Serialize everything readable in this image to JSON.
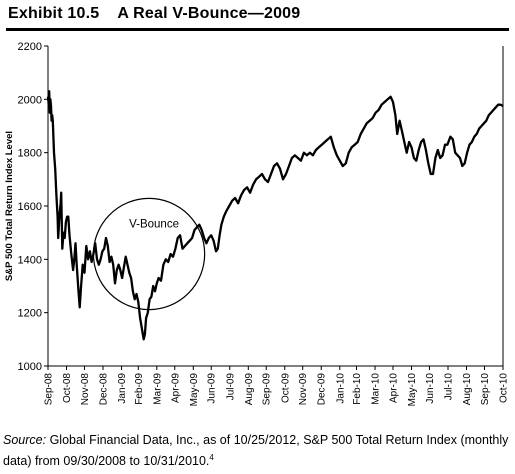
{
  "exhibit": {
    "number": "Exhibit 10.5",
    "title": "A Real V-Bounce—2009"
  },
  "chart_data": {
    "type": "line",
    "title": "",
    "xlabel": "",
    "ylabel": "S&P 500 Total Return Index Level",
    "ylim": [
      1000,
      2200
    ],
    "yticks": [
      1000,
      1200,
      1400,
      1600,
      1800,
      2000,
      2200
    ],
    "yticklabels": [
      "1000",
      "1200",
      "1400",
      "1600",
      "1800",
      "2000",
      "2200"
    ],
    "xlim": [
      "2008-09-30",
      "2010-10-31"
    ],
    "xticklabels": [
      "Sep-08",
      "Oct-08",
      "Nov-08",
      "Dec-08",
      "Jan-09",
      "Feb-09",
      "Mar-09",
      "Apr-09",
      "May-09",
      "Jun-09",
      "Jul-09",
      "Aug-09",
      "Sep-09",
      "Oct-09",
      "Nov-09",
      "Dec-09",
      "Jan-10",
      "Feb-10",
      "Mar-10",
      "Apr-10",
      "May-10",
      "Jun-10",
      "Jul-10",
      "Aug-10",
      "Sep-10",
      "Oct-10"
    ],
    "grid": false,
    "legend": "none",
    "annotation": {
      "text": "V-Bounce",
      "shape": "circle",
      "center": [
        "2009-03-18",
        1420
      ],
      "radius_days": 93
    },
    "series": [
      {
        "color": "#000000",
        "points": [
          [
            "2008-09-30",
            2010
          ],
          [
            "2008-10-01",
            1985
          ],
          [
            "2008-10-02",
            2030
          ],
          [
            "2008-10-03",
            1950
          ],
          [
            "2008-10-04",
            2000
          ],
          [
            "2008-10-05",
            1975
          ],
          [
            "2008-10-06",
            1920
          ],
          [
            "2008-10-07",
            1940
          ],
          [
            "2008-10-08",
            1920
          ],
          [
            "2008-10-10",
            1800
          ],
          [
            "2008-10-12",
            1740
          ],
          [
            "2008-10-14",
            1640
          ],
          [
            "2008-10-16",
            1560
          ],
          [
            "2008-10-17",
            1480
          ],
          [
            "2008-10-19",
            1560
          ],
          [
            "2008-10-21",
            1610
          ],
          [
            "2008-10-22",
            1650
          ],
          [
            "2008-10-24",
            1440
          ],
          [
            "2008-10-26",
            1500
          ],
          [
            "2008-10-28",
            1480
          ],
          [
            "2008-10-30",
            1540
          ],
          [
            "2008-11-01",
            1560
          ],
          [
            "2008-11-03",
            1560
          ],
          [
            "2008-11-05",
            1490
          ],
          [
            "2008-11-08",
            1420
          ],
          [
            "2008-11-11",
            1360
          ],
          [
            "2008-11-13",
            1400
          ],
          [
            "2008-11-15",
            1460
          ],
          [
            "2008-11-17",
            1380
          ],
          [
            "2008-11-20",
            1280
          ],
          [
            "2008-11-22",
            1220
          ],
          [
            "2008-11-24",
            1290
          ],
          [
            "2008-11-27",
            1380
          ],
          [
            "2008-11-30",
            1350
          ],
          [
            "2008-12-03",
            1450
          ],
          [
            "2008-12-06",
            1400
          ],
          [
            "2008-12-09",
            1430
          ],
          [
            "2008-12-12",
            1390
          ],
          [
            "2008-12-15",
            1420
          ],
          [
            "2008-12-18",
            1460
          ],
          [
            "2008-12-21",
            1400
          ],
          [
            "2008-12-24",
            1380
          ],
          [
            "2008-12-27",
            1400
          ],
          [
            "2008-12-30",
            1430
          ],
          [
            "2009-01-02",
            1440
          ],
          [
            "2009-01-05",
            1480
          ],
          [
            "2009-01-08",
            1450
          ],
          [
            "2009-01-11",
            1390
          ],
          [
            "2009-01-14",
            1410
          ],
          [
            "2009-01-17",
            1380
          ],
          [
            "2009-01-20",
            1310
          ],
          [
            "2009-01-23",
            1360
          ],
          [
            "2009-01-26",
            1380
          ],
          [
            "2009-01-29",
            1360
          ],
          [
            "2009-02-01",
            1330
          ],
          [
            "2009-02-04",
            1370
          ],
          [
            "2009-02-07",
            1410
          ],
          [
            "2009-02-10",
            1380
          ],
          [
            "2009-02-13",
            1350
          ],
          [
            "2009-02-16",
            1330
          ],
          [
            "2009-02-19",
            1280
          ],
          [
            "2009-02-22",
            1250
          ],
          [
            "2009-02-25",
            1270
          ],
          [
            "2009-02-28",
            1240
          ],
          [
            "2009-03-03",
            1180
          ],
          [
            "2009-03-06",
            1140
          ],
          [
            "2009-03-09",
            1100
          ],
          [
            "2009-03-11",
            1120
          ],
          [
            "2009-03-13",
            1180
          ],
          [
            "2009-03-16",
            1200
          ],
          [
            "2009-03-19",
            1250
          ],
          [
            "2009-03-22",
            1260
          ],
          [
            "2009-03-25",
            1300
          ],
          [
            "2009-03-28",
            1280
          ],
          [
            "2009-03-31",
            1310
          ],
          [
            "2009-04-03",
            1330
          ],
          [
            "2009-04-07",
            1320
          ],
          [
            "2009-04-11",
            1380
          ],
          [
            "2009-04-15",
            1400
          ],
          [
            "2009-04-19",
            1390
          ],
          [
            "2009-04-23",
            1420
          ],
          [
            "2009-04-27",
            1410
          ],
          [
            "2009-05-01",
            1440
          ],
          [
            "2009-05-05",
            1480
          ],
          [
            "2009-05-09",
            1490
          ],
          [
            "2009-05-13",
            1440
          ],
          [
            "2009-05-17",
            1450
          ],
          [
            "2009-05-21",
            1460
          ],
          [
            "2009-05-25",
            1470
          ],
          [
            "2009-05-29",
            1480
          ],
          [
            "2009-06-02",
            1510
          ],
          [
            "2009-06-06",
            1520
          ],
          [
            "2009-06-10",
            1530
          ],
          [
            "2009-06-14",
            1510
          ],
          [
            "2009-06-18",
            1480
          ],
          [
            "2009-06-22",
            1460
          ],
          [
            "2009-06-26",
            1480
          ],
          [
            "2009-06-30",
            1490
          ],
          [
            "2009-07-04",
            1470
          ],
          [
            "2009-07-08",
            1430
          ],
          [
            "2009-07-11",
            1440
          ],
          [
            "2009-07-14",
            1490
          ],
          [
            "2009-07-17",
            1530
          ],
          [
            "2009-07-21",
            1560
          ],
          [
            "2009-07-25",
            1580
          ],
          [
            "2009-07-30",
            1600
          ],
          [
            "2009-08-04",
            1620
          ],
          [
            "2009-08-09",
            1630
          ],
          [
            "2009-08-14",
            1610
          ],
          [
            "2009-08-19",
            1640
          ],
          [
            "2009-08-24",
            1660
          ],
          [
            "2009-08-29",
            1670
          ],
          [
            "2009-09-03",
            1650
          ],
          [
            "2009-09-08",
            1680
          ],
          [
            "2009-09-13",
            1700
          ],
          [
            "2009-09-18",
            1710
          ],
          [
            "2009-09-23",
            1720
          ],
          [
            "2009-09-28",
            1700
          ],
          [
            "2009-10-03",
            1690
          ],
          [
            "2009-10-08",
            1720
          ],
          [
            "2009-10-13",
            1750
          ],
          [
            "2009-10-18",
            1760
          ],
          [
            "2009-10-23",
            1740
          ],
          [
            "2009-10-28",
            1700
          ],
          [
            "2009-11-02",
            1720
          ],
          [
            "2009-11-07",
            1750
          ],
          [
            "2009-11-12",
            1780
          ],
          [
            "2009-11-17",
            1790
          ],
          [
            "2009-11-22",
            1780
          ],
          [
            "2009-11-27",
            1770
          ],
          [
            "2009-12-02",
            1800
          ],
          [
            "2009-12-07",
            1790
          ],
          [
            "2009-12-12",
            1800
          ],
          [
            "2009-12-17",
            1790
          ],
          [
            "2009-12-22",
            1810
          ],
          [
            "2009-12-27",
            1820
          ],
          [
            "2010-01-01",
            1830
          ],
          [
            "2010-01-06",
            1840
          ],
          [
            "2010-01-11",
            1850
          ],
          [
            "2010-01-16",
            1860
          ],
          [
            "2010-01-21",
            1820
          ],
          [
            "2010-01-26",
            1790
          ],
          [
            "2010-01-31",
            1770
          ],
          [
            "2010-02-05",
            1750
          ],
          [
            "2010-02-10",
            1760
          ],
          [
            "2010-02-15",
            1800
          ],
          [
            "2010-02-20",
            1820
          ],
          [
            "2010-02-25",
            1830
          ],
          [
            "2010-03-02",
            1840
          ],
          [
            "2010-03-07",
            1870
          ],
          [
            "2010-03-12",
            1890
          ],
          [
            "2010-03-17",
            1910
          ],
          [
            "2010-03-22",
            1920
          ],
          [
            "2010-03-27",
            1930
          ],
          [
            "2010-04-01",
            1950
          ],
          [
            "2010-04-06",
            1960
          ],
          [
            "2010-04-11",
            1980
          ],
          [
            "2010-04-16",
            1990
          ],
          [
            "2010-04-21",
            2000
          ],
          [
            "2010-04-26",
            2010
          ],
          [
            "2010-04-30",
            1990
          ],
          [
            "2010-05-04",
            1940
          ],
          [
            "2010-05-07",
            1870
          ],
          [
            "2010-05-11",
            1920
          ],
          [
            "2010-05-15",
            1880
          ],
          [
            "2010-05-19",
            1840
          ],
          [
            "2010-05-23",
            1800
          ],
          [
            "2010-05-27",
            1840
          ],
          [
            "2010-05-31",
            1820
          ],
          [
            "2010-06-04",
            1780
          ],
          [
            "2010-06-08",
            1770
          ],
          [
            "2010-06-12",
            1810
          ],
          [
            "2010-06-16",
            1840
          ],
          [
            "2010-06-20",
            1850
          ],
          [
            "2010-06-24",
            1810
          ],
          [
            "2010-06-28",
            1760
          ],
          [
            "2010-07-02",
            1720
          ],
          [
            "2010-07-06",
            1720
          ],
          [
            "2010-07-10",
            1780
          ],
          [
            "2010-07-14",
            1810
          ],
          [
            "2010-07-18",
            1780
          ],
          [
            "2010-07-22",
            1790
          ],
          [
            "2010-07-26",
            1830
          ],
          [
            "2010-07-30",
            1830
          ],
          [
            "2010-08-04",
            1860
          ],
          [
            "2010-08-08",
            1850
          ],
          [
            "2010-08-12",
            1800
          ],
          [
            "2010-08-16",
            1790
          ],
          [
            "2010-08-20",
            1780
          ],
          [
            "2010-08-24",
            1750
          ],
          [
            "2010-08-28",
            1760
          ],
          [
            "2010-09-01",
            1800
          ],
          [
            "2010-09-05",
            1830
          ],
          [
            "2010-09-09",
            1840
          ],
          [
            "2010-09-13",
            1860
          ],
          [
            "2010-09-17",
            1870
          ],
          [
            "2010-09-21",
            1890
          ],
          [
            "2010-09-25",
            1900
          ],
          [
            "2010-09-29",
            1910
          ],
          [
            "2010-10-03",
            1920
          ],
          [
            "2010-10-07",
            1940
          ],
          [
            "2010-10-11",
            1950
          ],
          [
            "2010-10-15",
            1960
          ],
          [
            "2010-10-19",
            1970
          ],
          [
            "2010-10-23",
            1980
          ],
          [
            "2010-10-27",
            1980
          ],
          [
            "2010-10-31",
            1975
          ]
        ]
      }
    ]
  },
  "source": {
    "label": "Source:",
    "text": "Global Financial Data, Inc., as of 10/25/2012, S&P 500 Total Return Index (monthly data) from 09/30/2008 to 10/31/2010.",
    "footnote": "4"
  }
}
